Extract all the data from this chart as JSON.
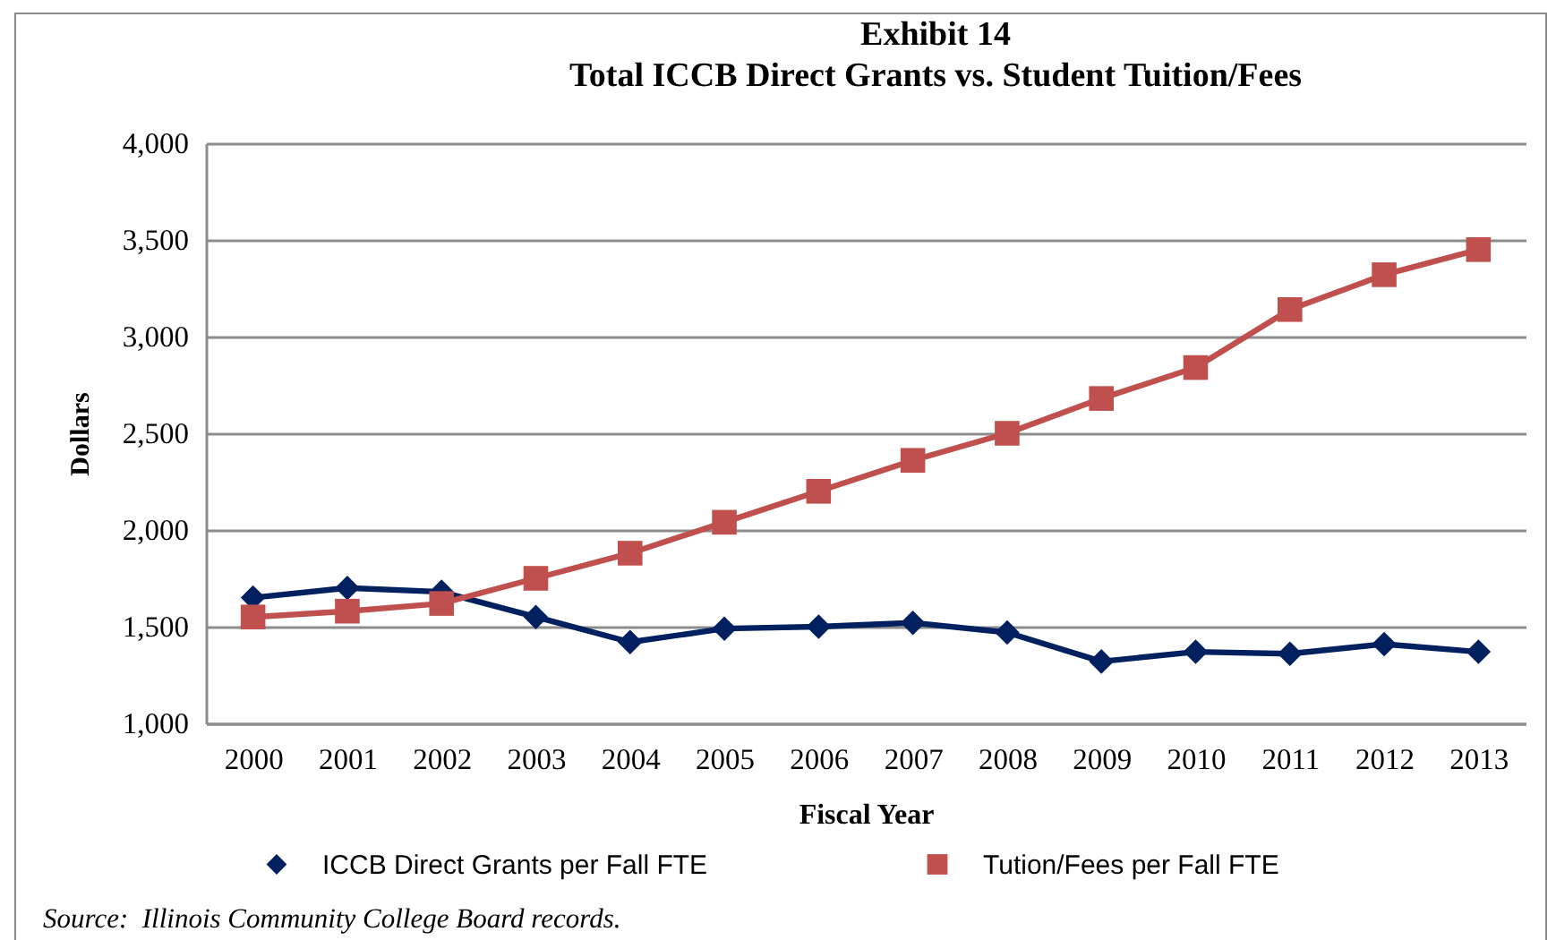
{
  "chart_data": {
    "type": "line",
    "title": "Exhibit 14",
    "subtitle": "Total ICCB Direct Grants vs. Student Tuition/Fees",
    "xlabel": "Fiscal Year",
    "ylabel": "Dollars",
    "categories": [
      "2000",
      "2001",
      "2002",
      "2003",
      "2004",
      "2005",
      "2006",
      "2007",
      "2008",
      "2009",
      "2010",
      "2011",
      "2012",
      "2013"
    ],
    "series": [
      {
        "name": "ICCB Direct Grants per Fall FTE",
        "color": "#002060",
        "marker": "diamond",
        "values": [
          1650,
          1700,
          1680,
          1550,
          1420,
          1490,
          1500,
          1520,
          1470,
          1320,
          1370,
          1360,
          1410,
          1370
        ]
      },
      {
        "name": "Tution/Fees per Fall FTE",
        "color": "#c0504d",
        "marker": "square",
        "values": [
          1550,
          1580,
          1620,
          1750,
          1880,
          2040,
          2200,
          2360,
          2500,
          2680,
          2840,
          3140,
          3320,
          3450
        ]
      }
    ],
    "ylim": [
      1000,
      4000
    ],
    "yticks": [
      {
        "value": 1000,
        "label": "1,000"
      },
      {
        "value": 1500,
        "label": "1,500"
      },
      {
        "value": 2000,
        "label": "2,000"
      },
      {
        "value": 2500,
        "label": "2,500"
      },
      {
        "value": 3000,
        "label": "3,000"
      },
      {
        "value": 3500,
        "label": "3,500"
      },
      {
        "value": 4000,
        "label": "4,000"
      }
    ],
    "grid": "y",
    "legend": "bottom",
    "annotations": [
      "Source:  Illinois Community College Board records."
    ]
  }
}
